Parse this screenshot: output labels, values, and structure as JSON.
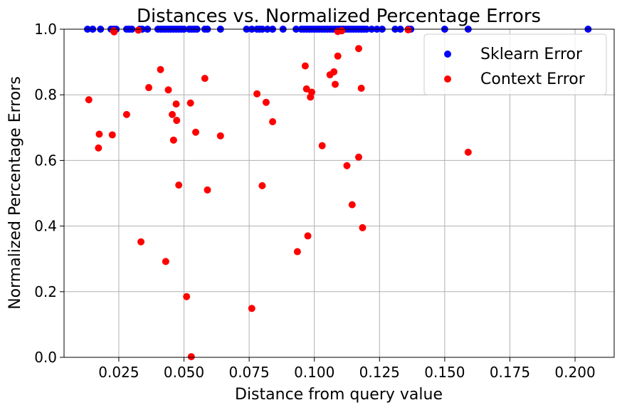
{
  "chart_data": {
    "type": "scatter",
    "title": "Distances vs. Normalized Percentage Errors",
    "xlabel": "Distance from query value",
    "ylabel": "Normalized Percentage Errors",
    "xlim": [
      0.004,
      0.215
    ],
    "ylim": [
      0.0,
      1.0
    ],
    "xticks": [
      "0.025",
      "0.050",
      "0.075",
      "0.100",
      "0.125",
      "0.150",
      "0.175",
      "0.200"
    ],
    "xtick_values": [
      0.025,
      0.05,
      0.075,
      0.1,
      0.125,
      0.15,
      0.175,
      0.2
    ],
    "yticks": [
      "0.0",
      "0.2",
      "0.4",
      "0.6",
      "0.8",
      "1.0"
    ],
    "ytick_values": [
      0.0,
      0.2,
      0.4,
      0.6,
      0.8,
      1.0
    ],
    "grid": true,
    "legend_position": "top-right",
    "series": [
      {
        "name": "Sklearn Error",
        "color": "#0000ff",
        "points": [
          [
            0.013,
            1.0
          ],
          [
            0.015,
            1.0
          ],
          [
            0.018,
            1.0
          ],
          [
            0.022,
            1.0
          ],
          [
            0.023,
            1.0
          ],
          [
            0.024,
            1.0
          ],
          [
            0.028,
            1.0
          ],
          [
            0.029,
            1.0
          ],
          [
            0.03,
            1.0
          ],
          [
            0.033,
            1.0
          ],
          [
            0.034,
            1.0
          ],
          [
            0.036,
            1.0
          ],
          [
            0.04,
            1.0
          ],
          [
            0.041,
            1.0
          ],
          [
            0.042,
            1.0
          ],
          [
            0.043,
            1.0
          ],
          [
            0.044,
            1.0
          ],
          [
            0.045,
            1.0
          ],
          [
            0.046,
            1.0
          ],
          [
            0.047,
            1.0
          ],
          [
            0.048,
            1.0
          ],
          [
            0.049,
            1.0
          ],
          [
            0.05,
            1.0
          ],
          [
            0.052,
            1.0
          ],
          [
            0.053,
            1.0
          ],
          [
            0.054,
            1.0
          ],
          [
            0.055,
            1.0
          ],
          [
            0.058,
            1.0
          ],
          [
            0.059,
            1.0
          ],
          [
            0.064,
            1.0
          ],
          [
            0.074,
            1.0
          ],
          [
            0.076,
            1.0
          ],
          [
            0.078,
            1.0
          ],
          [
            0.079,
            1.0
          ],
          [
            0.08,
            1.0
          ],
          [
            0.082,
            1.0
          ],
          [
            0.084,
            1.0
          ],
          [
            0.088,
            1.0
          ],
          [
            0.093,
            1.0
          ],
          [
            0.095,
            1.0
          ],
          [
            0.096,
            1.0
          ],
          [
            0.097,
            1.0
          ],
          [
            0.098,
            1.0
          ],
          [
            0.099,
            1.0
          ],
          [
            0.1,
            1.0
          ],
          [
            0.101,
            1.0
          ],
          [
            0.102,
            1.0
          ],
          [
            0.103,
            1.0
          ],
          [
            0.104,
            1.0
          ],
          [
            0.105,
            1.0
          ],
          [
            0.106,
            1.0
          ],
          [
            0.107,
            1.0
          ],
          [
            0.108,
            1.0
          ],
          [
            0.109,
            1.0
          ],
          [
            0.11,
            1.0
          ],
          [
            0.111,
            1.0
          ],
          [
            0.112,
            1.0
          ],
          [
            0.113,
            1.0
          ],
          [
            0.114,
            1.0
          ],
          [
            0.115,
            1.0
          ],
          [
            0.116,
            1.0
          ],
          [
            0.117,
            1.0
          ],
          [
            0.118,
            1.0
          ],
          [
            0.119,
            1.0
          ],
          [
            0.12,
            1.0
          ],
          [
            0.122,
            1.0
          ],
          [
            0.124,
            1.0
          ],
          [
            0.126,
            1.0
          ],
          [
            0.131,
            1.0
          ],
          [
            0.133,
            1.0
          ],
          [
            0.136,
            1.0
          ],
          [
            0.137,
            1.0
          ],
          [
            0.15,
            1.0
          ],
          [
            0.159,
            1.0
          ],
          [
            0.205,
            1.0
          ]
        ]
      },
      {
        "name": "Context Error",
        "color": "#ff0000",
        "points": [
          [
            0.0135,
            0.785
          ],
          [
            0.0175,
            0.68
          ],
          [
            0.0172,
            0.638
          ],
          [
            0.0225,
            0.678
          ],
          [
            0.023,
            0.995
          ],
          [
            0.0232,
            0.992
          ],
          [
            0.028,
            0.74
          ],
          [
            0.0325,
            0.997
          ],
          [
            0.0335,
            0.352
          ],
          [
            0.0365,
            0.822
          ],
          [
            0.041,
            0.877
          ],
          [
            0.043,
            0.292
          ],
          [
            0.044,
            0.815
          ],
          [
            0.0455,
            0.74
          ],
          [
            0.046,
            0.662
          ],
          [
            0.047,
            0.772
          ],
          [
            0.0472,
            0.722
          ],
          [
            0.048,
            0.525
          ],
          [
            0.051,
            0.185
          ],
          [
            0.0525,
            0.775
          ],
          [
            0.0528,
            0.002
          ],
          [
            0.0545,
            0.686
          ],
          [
            0.058,
            0.85
          ],
          [
            0.059,
            0.51
          ],
          [
            0.064,
            0.675
          ],
          [
            0.076,
            0.149
          ],
          [
            0.078,
            0.803
          ],
          [
            0.08,
            0.523
          ],
          [
            0.0815,
            0.777
          ],
          [
            0.084,
            0.718
          ],
          [
            0.0935,
            0.322
          ],
          [
            0.0965,
            0.888
          ],
          [
            0.097,
            0.818
          ],
          [
            0.0975,
            0.37
          ],
          [
            0.0985,
            0.793
          ],
          [
            0.099,
            0.808
          ],
          [
            0.103,
            0.645
          ],
          [
            0.106,
            0.861
          ],
          [
            0.1075,
            0.87
          ],
          [
            0.108,
            0.832
          ],
          [
            0.109,
            0.918
          ],
          [
            0.109,
            0.993
          ],
          [
            0.1105,
            0.995
          ],
          [
            0.1125,
            0.584
          ],
          [
            0.1145,
            0.465
          ],
          [
            0.117,
            0.941
          ],
          [
            0.117,
            0.61
          ],
          [
            0.118,
            0.82
          ],
          [
            0.1185,
            0.395
          ],
          [
            0.136,
            0.998
          ],
          [
            0.159,
            0.625
          ]
        ]
      }
    ]
  }
}
